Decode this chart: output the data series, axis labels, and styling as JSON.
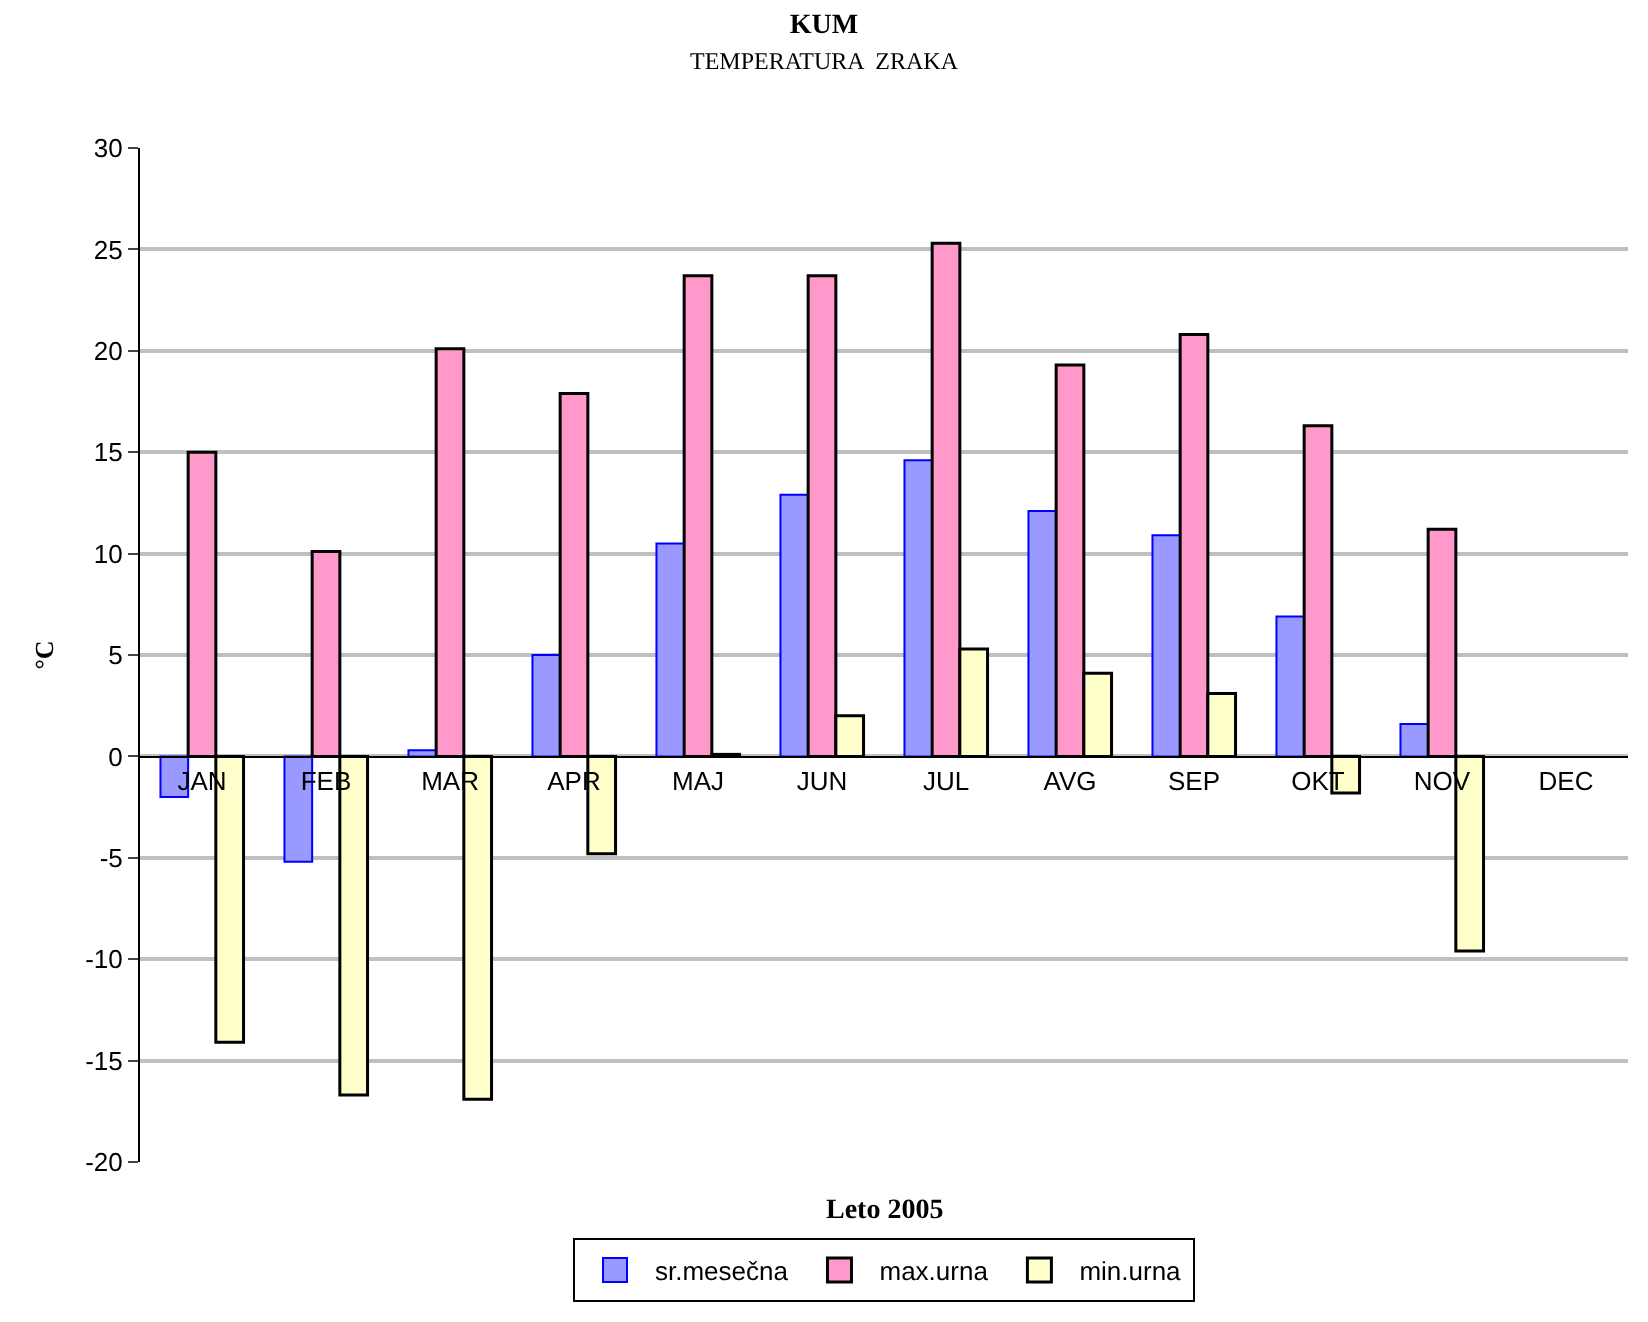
{
  "chart_data": {
    "type": "bar",
    "title": "KUM",
    "subtitle": "TEMPERATURA  ZRAKA",
    "xlabel": "Leto 2005",
    "ylabel": "°C",
    "categories": [
      "JAN",
      "FEB",
      "MAR",
      "APR",
      "MAJ",
      "JUN",
      "JUL",
      "AVG",
      "SEP",
      "OKT",
      "NOV",
      "DEC"
    ],
    "series": [
      {
        "name": "sr.mesečna",
        "color": "#9999ff",
        "values": [
          -2.0,
          -5.2,
          0.3,
          5.0,
          10.5,
          12.9,
          14.6,
          12.1,
          10.9,
          6.9,
          1.6,
          null
        ]
      },
      {
        "name": "max.urna",
        "color": "#ff99cc",
        "values": [
          15.0,
          10.1,
          20.1,
          17.9,
          23.7,
          23.7,
          25.3,
          19.3,
          20.8,
          16.3,
          11.2,
          null
        ]
      },
      {
        "name": "min.urna",
        "color": "#ffffcc",
        "values": [
          -14.1,
          -16.7,
          -16.9,
          -4.8,
          0.1,
          2.0,
          5.3,
          4.1,
          3.1,
          -1.8,
          -9.6,
          null
        ]
      }
    ],
    "ylim": [
      -20,
      30
    ],
    "yticks": [
      -20,
      -15,
      -10,
      -5,
      0,
      5,
      10,
      15,
      20,
      25,
      30
    ],
    "grid": "y",
    "legend": "bottom"
  }
}
